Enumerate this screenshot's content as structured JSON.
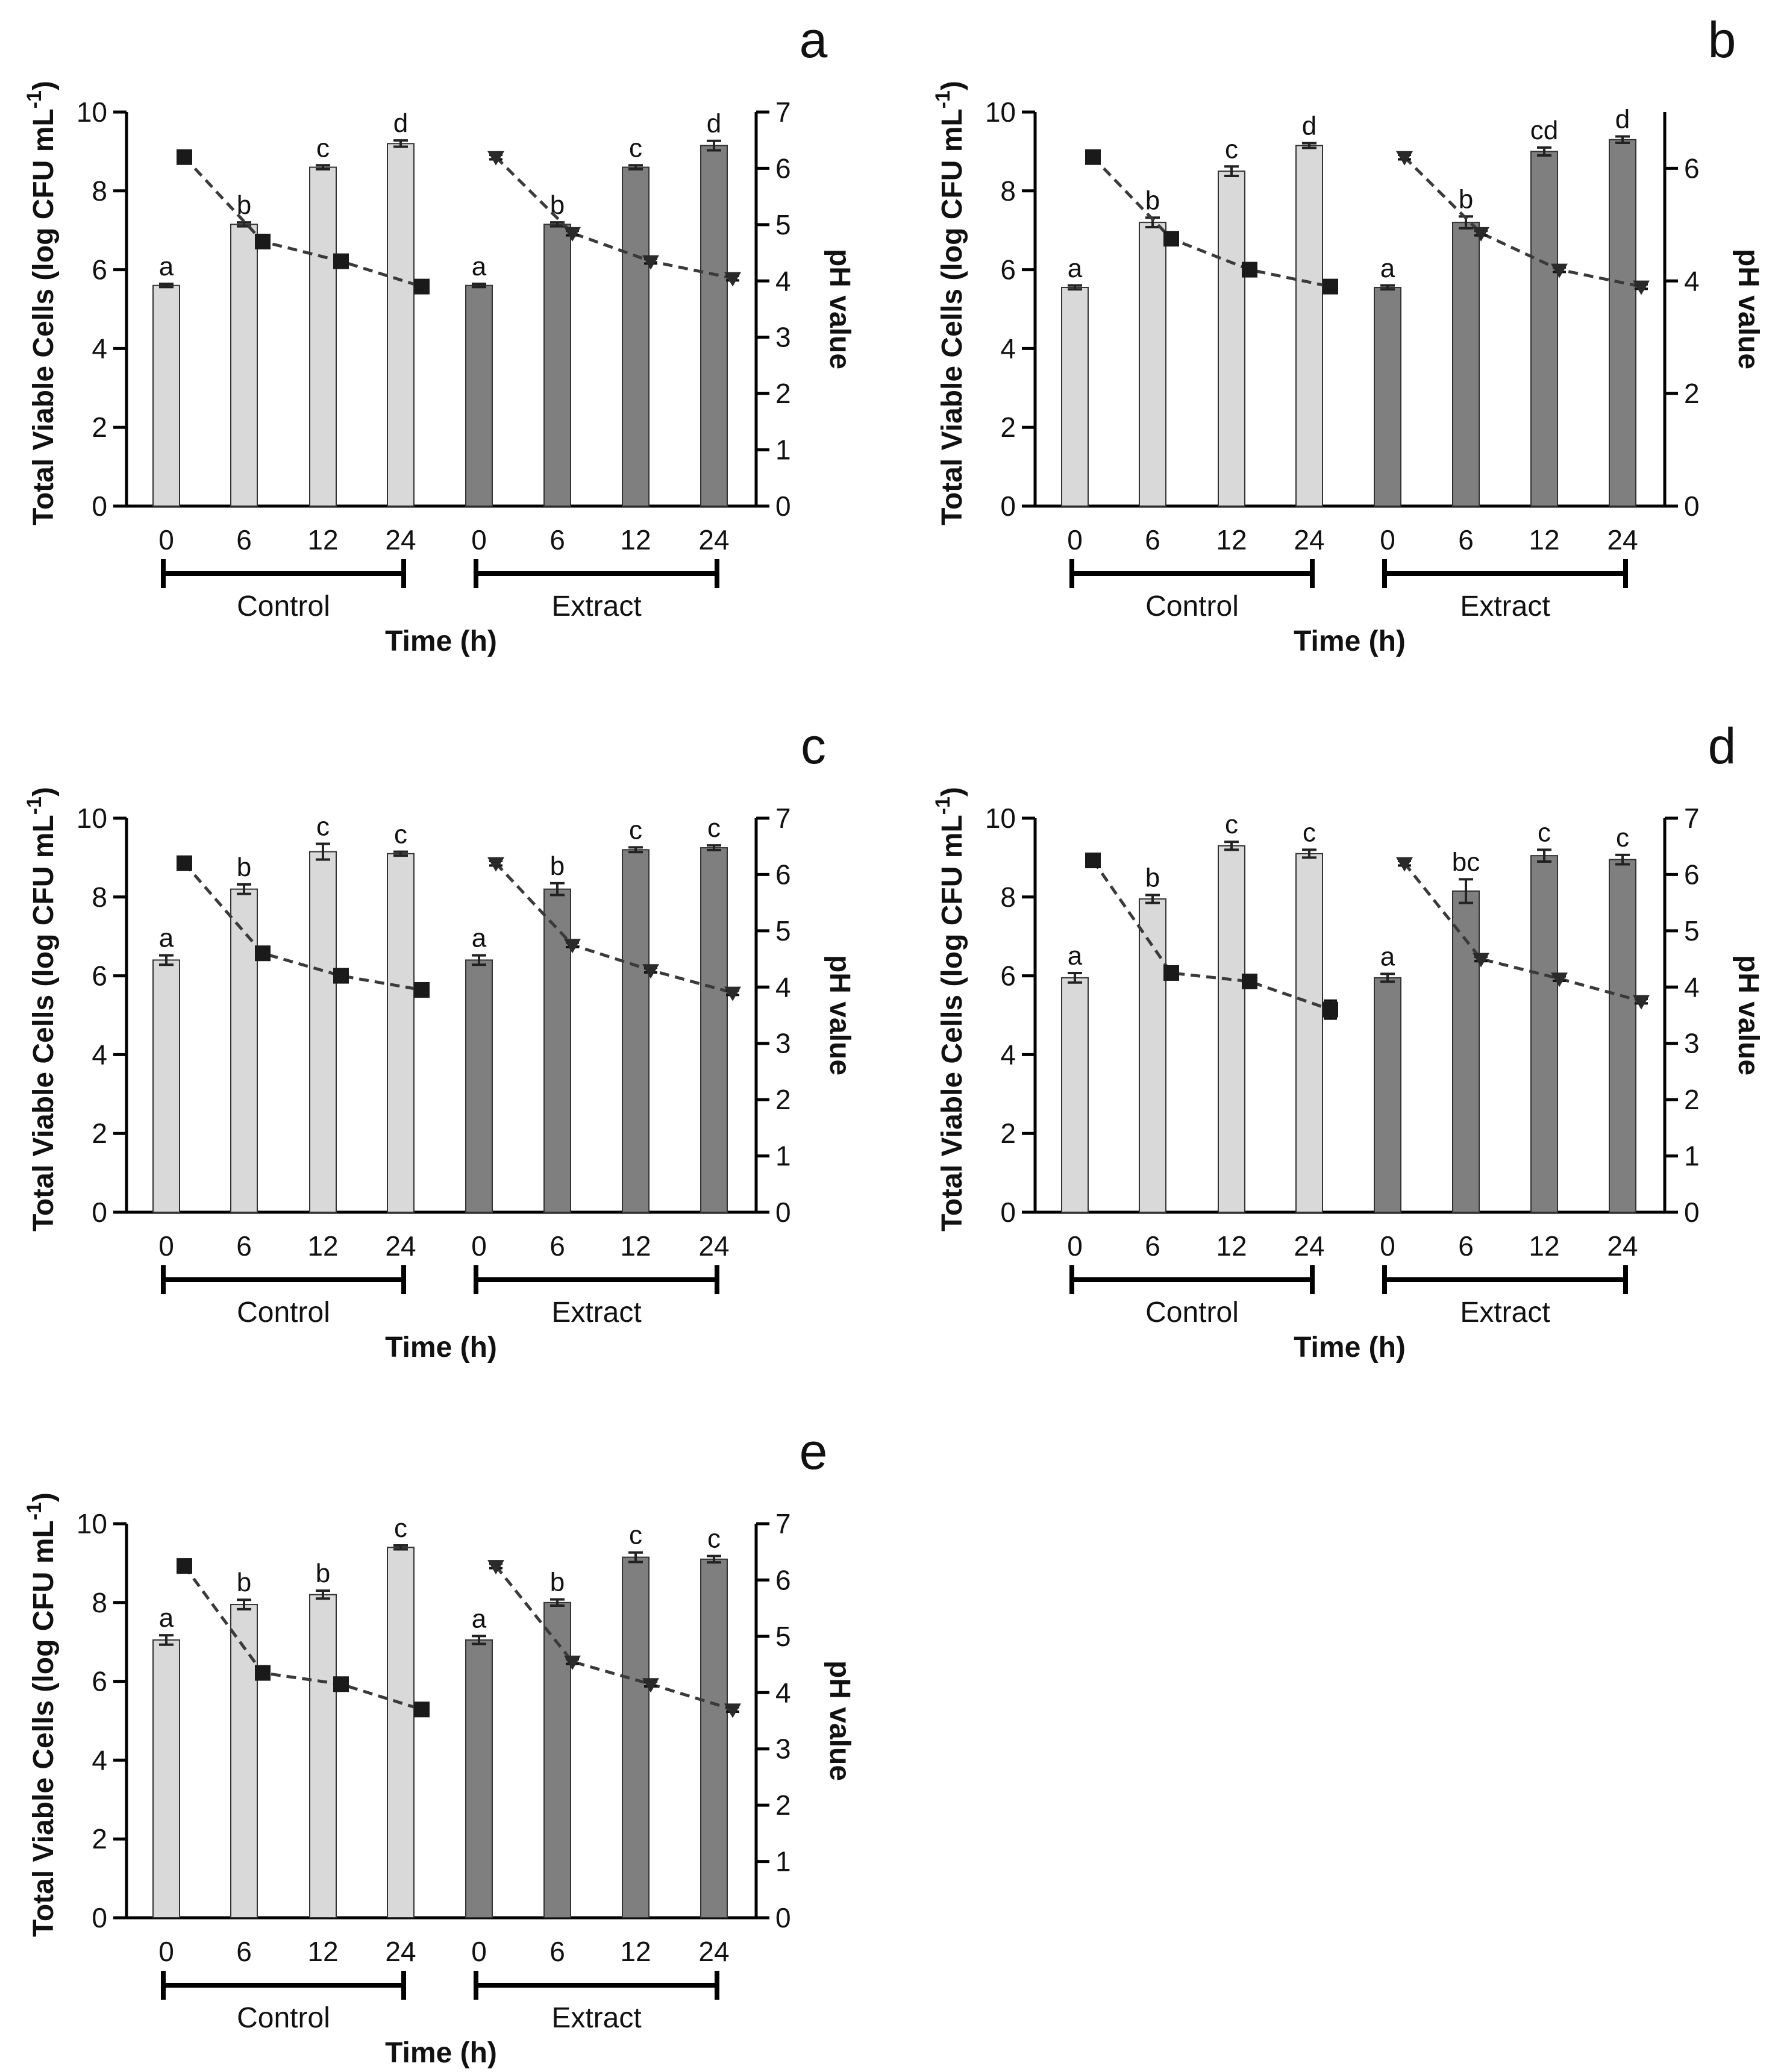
{
  "chart_data": [
    {
      "panel": "a",
      "type": "bar",
      "groups": [
        "Control",
        "Extract"
      ],
      "categories": [
        "0",
        "6",
        "12",
        "24"
      ],
      "xlabel": "Time (h)",
      "ylabel": "Total Viable Cells (log CFU mL-1)",
      "ylabel_sup": "-1",
      "y2label": "pH value",
      "ylim": [
        0,
        10
      ],
      "y2lim": [
        0,
        7
      ],
      "yticks": [
        0,
        2,
        4,
        6,
        8,
        10
      ],
      "y2ticks": [
        0,
        1,
        2,
        3,
        4,
        5,
        6,
        7
      ],
      "series": [
        {
          "group": "Control",
          "color": "#d9d9d9",
          "values": [
            5.6,
            7.15,
            8.6,
            9.2
          ],
          "errors": [
            0.04,
            0.05,
            0.05,
            0.08
          ],
          "letters": [
            "a",
            "b",
            "c",
            "d"
          ],
          "ph": [
            6.2,
            4.7,
            4.35,
            3.9
          ],
          "ph_err": [
            0.05,
            0.05,
            0.05,
            0.05
          ]
        },
        {
          "group": "Extract",
          "color": "#7f7f7f",
          "values": [
            5.6,
            7.15,
            8.6,
            9.15
          ],
          "errors": [
            0.04,
            0.05,
            0.05,
            0.12
          ],
          "letters": [
            "a",
            "b",
            "c",
            "d"
          ],
          "ph": [
            6.2,
            4.85,
            4.35,
            4.05
          ],
          "ph_err": [
            0.04,
            0.04,
            0.04,
            0.04
          ]
        }
      ]
    },
    {
      "panel": "b",
      "type": "bar",
      "groups": [
        "Control",
        "Extract"
      ],
      "categories": [
        "0",
        "6",
        "12",
        "24"
      ],
      "xlabel": "Time (h)",
      "ylabel": "Total Viable Cells (log CFU mL-1)",
      "ylabel_sup": "-1",
      "y2label": "pH value",
      "ylim": [
        0,
        10
      ],
      "y2lim": [
        0,
        7
      ],
      "yticks": [
        0,
        2,
        4,
        6,
        8,
        10
      ],
      "y2ticks": [
        0,
        2,
        4,
        6
      ],
      "series": [
        {
          "group": "Control",
          "color": "#d9d9d9",
          "values": [
            5.55,
            7.2,
            8.5,
            9.15
          ],
          "errors": [
            0.05,
            0.12,
            0.12,
            0.06
          ],
          "letters": [
            "a",
            "b",
            "c",
            "d"
          ],
          "ph": [
            6.2,
            4.75,
            4.2,
            3.9
          ],
          "ph_err": [
            0.05,
            0.05,
            0.05,
            0.05
          ]
        },
        {
          "group": "Extract",
          "color": "#7f7f7f",
          "values": [
            5.55,
            7.2,
            9.0,
            9.3
          ],
          "errors": [
            0.05,
            0.15,
            0.1,
            0.08
          ],
          "letters": [
            "a",
            "b",
            "cd",
            "d"
          ],
          "ph": [
            6.2,
            4.85,
            4.2,
            3.9
          ],
          "ph_err": [
            0.04,
            0.04,
            0.04,
            0.04
          ]
        }
      ]
    },
    {
      "panel": "c",
      "type": "bar",
      "groups": [
        "Control",
        "Extract"
      ],
      "categories": [
        "0",
        "6",
        "12",
        "24"
      ],
      "xlabel": "Time (h)",
      "ylabel": "Total Viable Cells (log CFU mL-1)",
      "ylabel_sup": "-1",
      "y2label": "pH value",
      "ylim": [
        0,
        10
      ],
      "y2lim": [
        0,
        7
      ],
      "yticks": [
        0,
        2,
        4,
        6,
        8,
        10
      ],
      "y2ticks": [
        0,
        1,
        2,
        3,
        4,
        5,
        6,
        7
      ],
      "series": [
        {
          "group": "Control",
          "color": "#d9d9d9",
          "values": [
            6.4,
            8.2,
            9.15,
            9.1
          ],
          "errors": [
            0.12,
            0.12,
            0.2,
            0.05
          ],
          "letters": [
            "a",
            "b",
            "c",
            "c"
          ],
          "ph": [
            6.2,
            4.6,
            4.2,
            3.95
          ],
          "ph_err": [
            0.05,
            0.05,
            0.05,
            0.05
          ]
        },
        {
          "group": "Extract",
          "color": "#7f7f7f",
          "values": [
            6.4,
            8.2,
            9.2,
            9.25
          ],
          "errors": [
            0.12,
            0.15,
            0.06,
            0.06
          ],
          "letters": [
            "a",
            "b",
            "c",
            "c"
          ],
          "ph": [
            6.2,
            4.75,
            4.3,
            3.9
          ],
          "ph_err": [
            0.04,
            0.04,
            0.04,
            0.04
          ]
        }
      ]
    },
    {
      "panel": "d",
      "type": "bar",
      "groups": [
        "Control",
        "Extract"
      ],
      "categories": [
        "0",
        "6",
        "12",
        "24"
      ],
      "xlabel": "Time (h)",
      "ylabel": "Total Viable Cells (log CFU mL-1)",
      "ylabel_sup": "-1",
      "y2label": "pH value",
      "ylim": [
        0,
        10
      ],
      "y2lim": [
        0,
        7
      ],
      "yticks": [
        0,
        2,
        4,
        6,
        8,
        10
      ],
      "y2ticks": [
        0,
        1,
        2,
        3,
        4,
        5,
        6,
        7
      ],
      "series": [
        {
          "group": "Control",
          "color": "#d9d9d9",
          "values": [
            5.95,
            7.95,
            9.3,
            9.1
          ],
          "errors": [
            0.12,
            0.1,
            0.1,
            0.1
          ],
          "letters": [
            "a",
            "b",
            "c",
            "c"
          ],
          "ph": [
            6.25,
            4.25,
            4.1,
            3.6
          ],
          "ph_err": [
            0.05,
            0.05,
            0.05,
            0.16
          ]
        },
        {
          "group": "Extract",
          "color": "#7f7f7f",
          "values": [
            5.95,
            8.15,
            9.05,
            8.95
          ],
          "errors": [
            0.1,
            0.3,
            0.15,
            0.12
          ],
          "letters": [
            "a",
            "bc",
            "c",
            "c"
          ],
          "ph": [
            6.2,
            4.5,
            4.15,
            3.75
          ],
          "ph_err": [
            0.04,
            0.04,
            0.04,
            0.04
          ]
        }
      ]
    },
    {
      "panel": "e",
      "type": "bar",
      "groups": [
        "Control",
        "Extract"
      ],
      "categories": [
        "0",
        "6",
        "12",
        "24"
      ],
      "xlabel": "Time (h)",
      "ylabel": "Total Viable Cells (log CFU mL-1)",
      "ylabel_sup": "-1",
      "y2label": "pH value",
      "ylim": [
        0,
        10
      ],
      "y2lim": [
        0,
        7
      ],
      "yticks": [
        0,
        2,
        4,
        6,
        8,
        10
      ],
      "y2ticks": [
        0,
        1,
        2,
        3,
        4,
        5,
        6,
        7
      ],
      "series": [
        {
          "group": "Control",
          "color": "#d9d9d9",
          "values": [
            7.05,
            7.95,
            8.2,
            9.4
          ],
          "errors": [
            0.12,
            0.12,
            0.1,
            0.05
          ],
          "letters": [
            "a",
            "b",
            "b",
            "c"
          ],
          "ph": [
            6.25,
            4.35,
            4.15,
            3.7
          ],
          "ph_err": [
            0.05,
            0.05,
            0.05,
            0.05
          ]
        },
        {
          "group": "Extract",
          "color": "#7f7f7f",
          "values": [
            7.05,
            8.0,
            9.15,
            9.1
          ],
          "errors": [
            0.1,
            0.08,
            0.12,
            0.08
          ],
          "letters": [
            "a",
            "b",
            "c",
            "c"
          ],
          "ph": [
            6.25,
            4.55,
            4.15,
            3.7
          ],
          "ph_err": [
            0.04,
            0.04,
            0.04,
            0.04
          ]
        }
      ]
    }
  ]
}
